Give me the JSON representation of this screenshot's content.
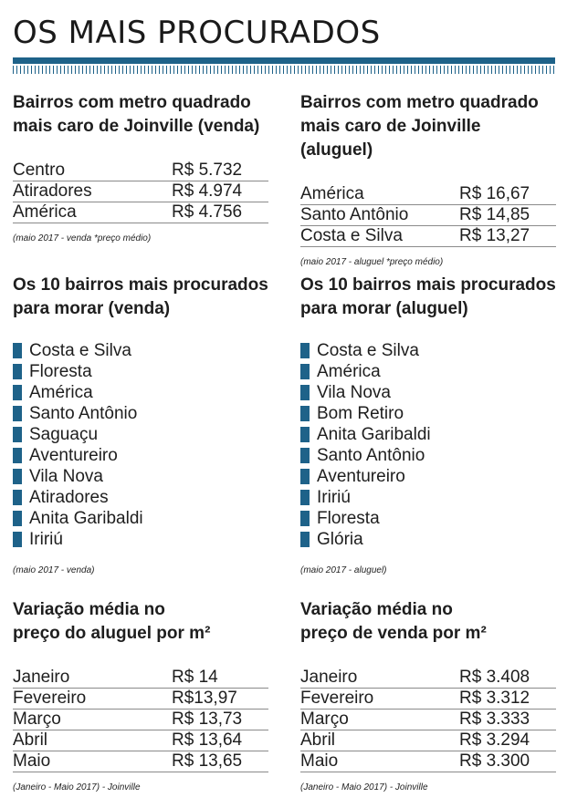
{
  "title": "OS MAIS PROCURADOS",
  "colors": {
    "accent": "#1e6289"
  },
  "left": {
    "top_table": {
      "title_line1": "Bairros com metro quadrado",
      "title_line2": "mais caro de Joinville (venda)",
      "rows": [
        {
          "name": "Centro",
          "value": "R$ 5.732"
        },
        {
          "name": "Atiradores",
          "value": "R$ 4.974"
        },
        {
          "name": "América",
          "value": "R$ 4.756"
        }
      ],
      "note": "(maio 2017 - venda *preço médio)"
    },
    "list": {
      "title_line1": "Os 10 bairros mais procurados",
      "title_line2": "para morar (venda)",
      "items": [
        "Costa e Silva",
        "Floresta",
        "América",
        "Santo Antônio",
        "Saguaçu",
        "Aventureiro",
        "Vila Nova",
        "Atiradores",
        "Anita Garibaldi",
        "Iririú"
      ],
      "note": "(maio 2017 - venda)"
    },
    "variation": {
      "title_line1": "Variação média no",
      "title_line2": "preço do aluguel por m²",
      "rows": [
        {
          "name": "Janeiro",
          "value": "R$ 14"
        },
        {
          "name": "Fevereiro",
          "value": "R$13,97"
        },
        {
          "name": "Março",
          "value": "R$ 13,73"
        },
        {
          "name": "Abril",
          "value": "R$ 13,64"
        },
        {
          "name": "Maio",
          "value": "R$ 13,65"
        }
      ],
      "note": "(Janeiro - Maio 2017) - Joinville"
    }
  },
  "right": {
    "top_table": {
      "title_line1": "Bairros com metro quadrado",
      "title_line2": "mais caro de Joinville (aluguel)",
      "rows": [
        {
          "name": "América",
          "value": "R$ 16,67"
        },
        {
          "name": "Santo Antônio",
          "value": "R$ 14,85"
        },
        {
          "name": "Costa e Silva",
          "value": "R$ 13,27"
        }
      ],
      "note": "(maio 2017 - aluguel *preço médio)"
    },
    "list": {
      "title_line1": "Os 10 bairros mais procurados",
      "title_line2": "para morar (aluguel)",
      "items": [
        "Costa e Silva",
        "América",
        "Vila Nova",
        "Bom Retiro",
        "Anita Garibaldi",
        "Santo Antônio",
        "Aventureiro",
        "Iririú",
        "Floresta",
        "Glória"
      ],
      "note": "(maio 2017 - aluguel)"
    },
    "variation": {
      "title_line1": "Variação média no",
      "title_line2": "preço de venda por m²",
      "rows": [
        {
          "name": "Janeiro",
          "value": "R$ 3.408"
        },
        {
          "name": "Fevereiro",
          "value": "R$ 3.312"
        },
        {
          "name": "Março",
          "value": "R$ 3.333"
        },
        {
          "name": "Abril",
          "value": "R$ 3.294"
        },
        {
          "name": "Maio",
          "value": "R$ 3.300"
        }
      ],
      "note": "(Janeiro - Maio 2017) - Joinville"
    }
  }
}
